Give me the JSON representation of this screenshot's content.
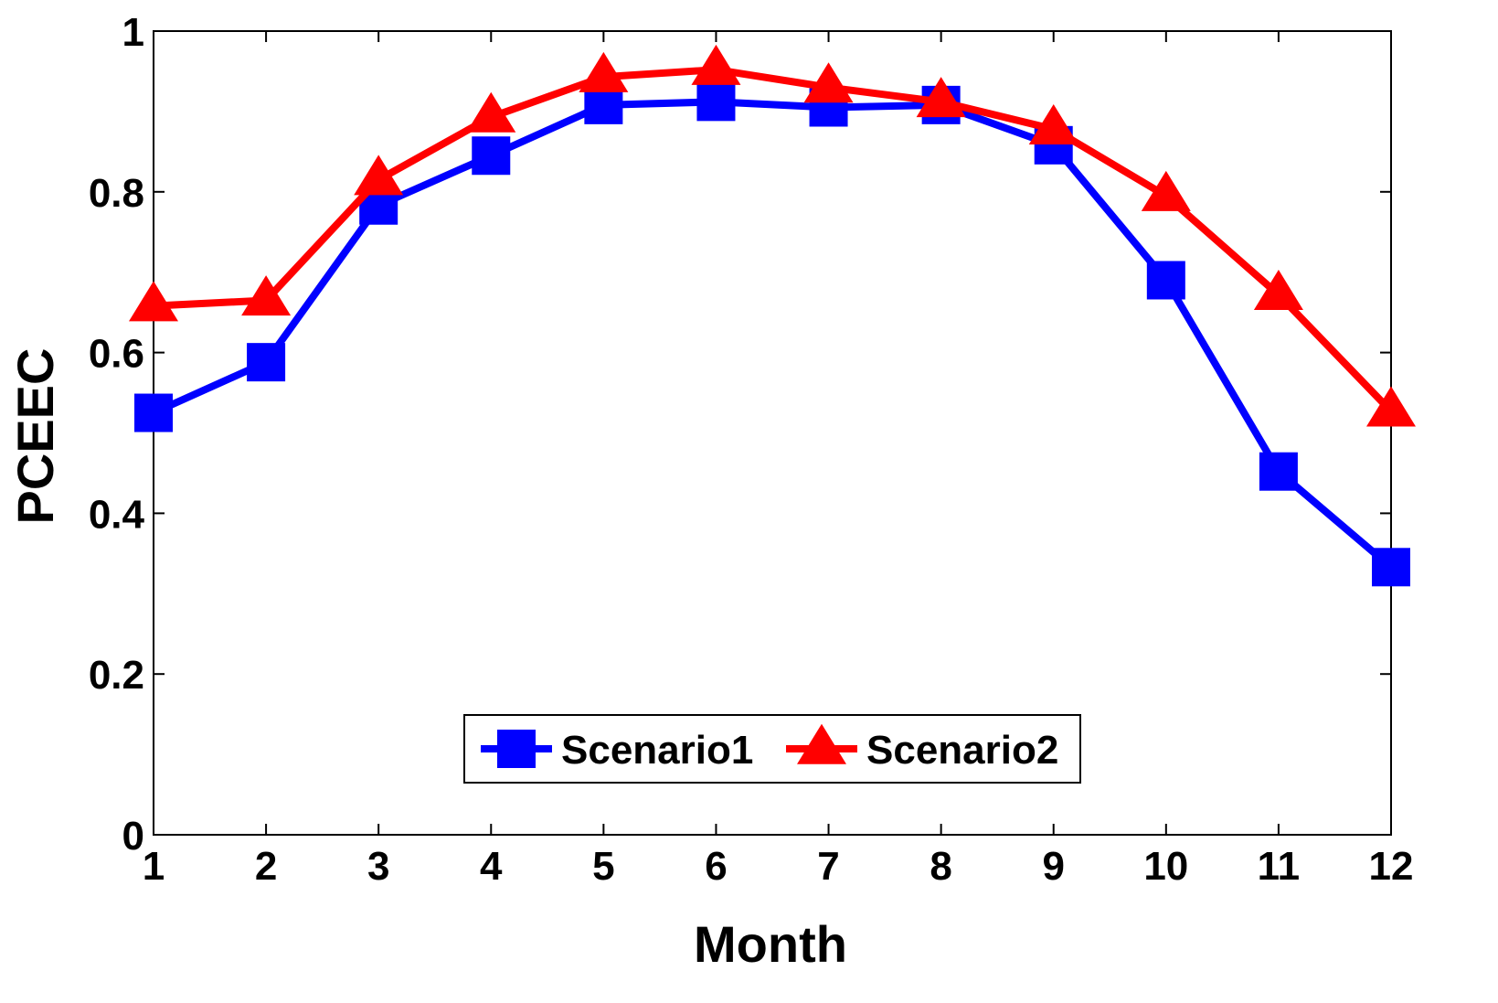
{
  "chart_data": {
    "type": "line",
    "title": "",
    "xlabel": "Month",
    "ylabel": "PCEEC",
    "x": [
      1,
      2,
      3,
      4,
      5,
      6,
      7,
      8,
      9,
      10,
      11,
      12
    ],
    "xticks": [
      "1",
      "2",
      "3",
      "4",
      "5",
      "6",
      "7",
      "8",
      "9",
      "10",
      "11",
      "12"
    ],
    "yticks": [
      "0",
      "0.2",
      "0.4",
      "0.6",
      "0.8",
      "1"
    ],
    "xlim": [
      1,
      12
    ],
    "ylim": [
      0,
      1
    ],
    "grid": false,
    "legend_position": "bottom-center",
    "series": [
      {
        "name": "Scenario1",
        "color": "#0000FF",
        "marker": "square",
        "values": [
          0.525,
          0.588,
          0.783,
          0.845,
          0.908,
          0.912,
          0.905,
          0.908,
          0.858,
          0.69,
          0.452,
          0.333
        ]
      },
      {
        "name": "Scenario2",
        "color": "#FF0000",
        "marker": "triangle",
        "values": [
          0.658,
          0.665,
          0.815,
          0.893,
          0.943,
          0.952,
          0.93,
          0.912,
          0.878,
          0.795,
          0.672,
          0.527
        ]
      }
    ]
  }
}
